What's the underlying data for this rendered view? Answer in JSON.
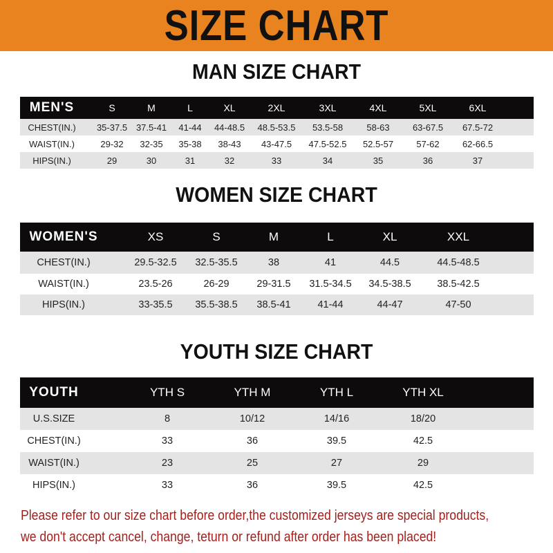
{
  "banner_title": "SIZE CHART",
  "men": {
    "title": "MAN SIZE CHART",
    "header": [
      "MEN'S",
      "S",
      "M",
      "L",
      "XL",
      "2XL",
      "3XL",
      "4XL",
      "5XL",
      "6XL"
    ],
    "rows": [
      [
        "CHEST(IN.)",
        "35-37.5",
        "37.5-41",
        "41-44",
        "44-48.5",
        "48.5-53.5",
        "53.5-58",
        "58-63",
        "63-67.5",
        "67.5-72"
      ],
      [
        "WAIST(IN.)",
        "29-32",
        "32-35",
        "35-38",
        "38-43",
        "43-47.5",
        "47.5-52.5",
        "52.5-57",
        "57-62",
        "62-66.5"
      ],
      [
        "HIPS(IN.)",
        "29",
        "30",
        "31",
        "32",
        "33",
        "34",
        "35",
        "36",
        "37"
      ]
    ]
  },
  "women": {
    "title": "WOMEN SIZE CHART",
    "header": [
      "WOMEN'S",
      "XS",
      "S",
      "M",
      "L",
      "XL",
      "XXL"
    ],
    "rows": [
      [
        "CHEST(IN.)",
        "29.5-32.5",
        "32.5-35.5",
        "38",
        "41",
        "44.5",
        "44.5-48.5"
      ],
      [
        "WAIST(IN.)",
        "23.5-26",
        "26-29",
        "29-31.5",
        "31.5-34.5",
        "34.5-38.5",
        "38.5-42.5"
      ],
      [
        "HIPS(IN.)",
        "33-35.5",
        "35.5-38.5",
        "38.5-41",
        "41-44",
        "44-47",
        "47-50"
      ]
    ]
  },
  "youth": {
    "title": "YOUTH SIZE CHART",
    "header": [
      "YOUTH",
      "YTH S",
      "YTH M",
      "YTH L",
      "YTH XL"
    ],
    "rows": [
      [
        "U.S.SIZE",
        "8",
        "10/12",
        "14/16",
        "18/20"
      ],
      [
        "CHEST(IN.)",
        "33",
        "36",
        "39.5",
        "42.5"
      ],
      [
        "WAIST(IN.)",
        "23",
        "25",
        "27",
        "29"
      ],
      [
        "HIPS(IN.)",
        "33",
        "36",
        "39.5",
        "42.5"
      ]
    ]
  },
  "notice": {
    "line1": "Please refer to our size chart before order,the customized jerseys are special products,",
    "line2": "we don't accept cancel, change, teturn or refund after order has been placed!"
  },
  "colors": {
    "banner": "#e8831f",
    "header_row": "#0d0b0b",
    "stripe": "#e4e4e4",
    "notice": "#a3201d"
  }
}
